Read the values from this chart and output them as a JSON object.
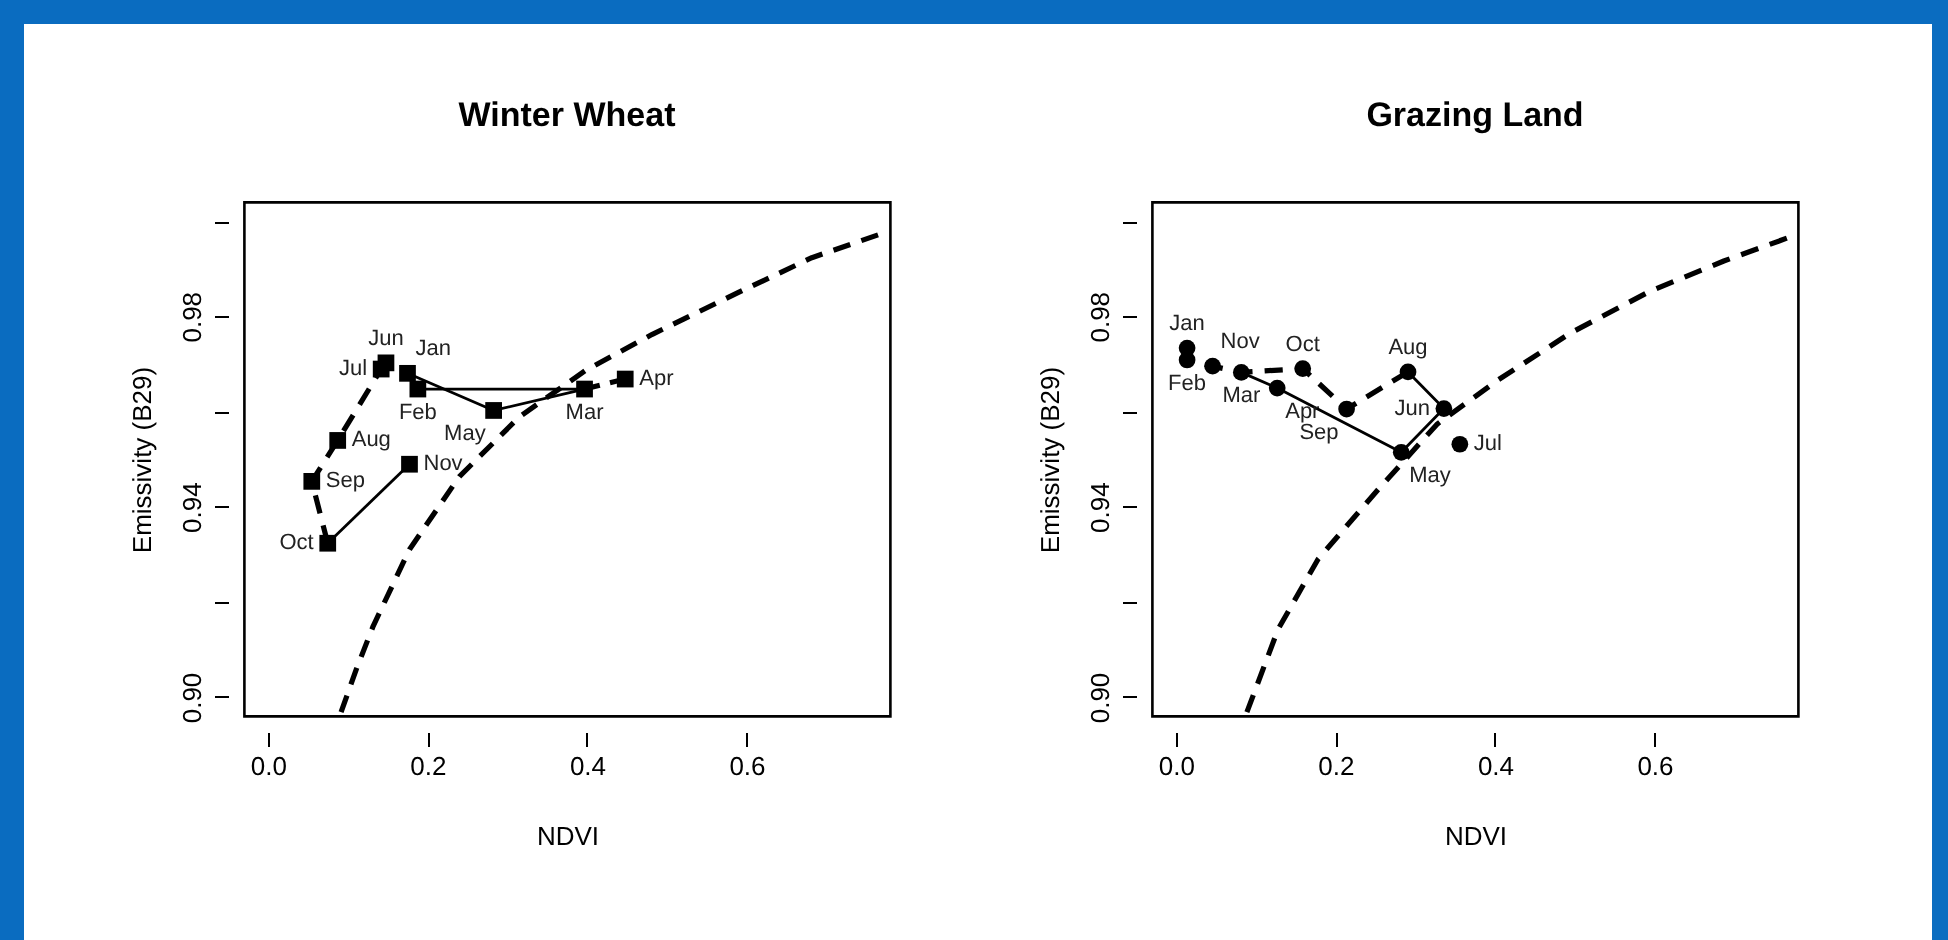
{
  "chart_data": [
    {
      "type": "scatter",
      "title": "Winter Wheat",
      "xlabel": "NDVI",
      "ylabel": "Emissivity (B29)",
      "xlim": [
        -0.03,
        0.78
      ],
      "ylim": [
        0.896,
        1.004
      ],
      "xticks": [
        {
          "value": 0,
          "label": "0.0"
        },
        0.2,
        0.4,
        0.6
      ],
      "yticks": [
        {
          "value": 0.9,
          "label": "0.90"
        },
        {
          "value": 0.92,
          "label": null
        },
        {
          "value": 0.94,
          "label": "0.94"
        },
        {
          "value": 0.96,
          "label": null
        },
        {
          "value": 0.98,
          "label": "0.98"
        },
        {
          "value": 1.0,
          "label": null
        }
      ],
      "grid": false,
      "series": [
        {
          "type": "line",
          "color": "#000000",
          "line_style": "solid",
          "x": [
            0.188,
            0.397
          ],
          "values": [
            0.9647,
            0.9647
          ]
        },
        {
          "type": "line",
          "color": "#000000",
          "line_style": "solid",
          "x": [
            0.175,
            0.283,
            0.397
          ],
          "values": [
            0.968,
            0.9602,
            0.9647
          ]
        },
        {
          "type": "line",
          "color": "#000000",
          "line_style": "dashed",
          "x": [
            0.397,
            0.448
          ],
          "values": [
            0.9647,
            0.9668
          ]
        },
        {
          "type": "line",
          "color": "#000000",
          "line_style": "dashed",
          "x": [
            0.148,
            0.142,
            0.0875,
            0.055,
            0.075
          ],
          "values": [
            0.9702,
            0.9689,
            0.9539,
            0.9453,
            0.9323
          ]
        },
        {
          "type": "line",
          "color": "#000000",
          "line_style": "solid",
          "x": [
            0.075,
            0.1775
          ],
          "values": [
            0.9323,
            0.9489
          ]
        },
        {
          "type": "line",
          "color": "#000000",
          "line_style": "dashed",
          "x": [
            0.0917,
            0.111,
            0.132,
            0.1775,
            0.24,
            0.315,
            0.398,
            0.482,
            0.59,
            0.682,
            0.765
          ],
          "values": [
            0.8968,
            0.9059,
            0.9149,
            0.931,
            0.9463,
            0.9588,
            0.9686,
            0.9762,
            0.985,
            0.9923,
            0.9971
          ]
        },
        {
          "type": "scatter",
          "color": "#000000",
          "marker": "square",
          "x": [
            0.175,
            0.188,
            0.397,
            0.448,
            0.283,
            0.148,
            0.142,
            0.0875,
            0.055,
            0.075,
            0.1775
          ],
          "values": [
            0.968,
            0.9647,
            0.9647,
            0.9668,
            0.9602,
            0.9702,
            0.9689,
            0.9539,
            0.9453,
            0.9323,
            0.9489
          ],
          "value_labels": [
            "Jan",
            "Feb",
            "Mar",
            "Apr",
            "May",
            "Jun",
            "Jul",
            "Aug",
            "Sep",
            "Oct",
            "Nov"
          ]
        }
      ]
    },
    {
      "type": "scatter",
      "title": "Grazing Land",
      "xlabel": "NDVI",
      "ylabel": "Emissivity (B29)",
      "xlim": [
        -0.03,
        0.78
      ],
      "ylim": [
        0.896,
        1.004
      ],
      "xticks": [
        {
          "value": 0,
          "label": "0.0"
        },
        0.2,
        0.4,
        0.6
      ],
      "yticks": [
        {
          "value": 0.9,
          "label": "0.90"
        },
        {
          "value": 0.92,
          "label": null
        },
        {
          "value": 0.94,
          "label": "0.94"
        },
        {
          "value": 0.96,
          "label": null
        },
        {
          "value": 0.98,
          "label": "0.98"
        },
        {
          "value": 1.0,
          "label": null
        }
      ],
      "grid": false,
      "series": [
        {
          "type": "line",
          "color": "#000000",
          "line_style": "dashed",
          "x": [
            0.014,
            0.014,
            0.046,
            0.082,
            0.159,
            0.214,
            0.291
          ],
          "values": [
            0.9733,
            0.9708,
            0.9695,
            0.9682,
            0.969,
            0.9605,
            0.9683
          ]
        },
        {
          "type": "line",
          "color": "#000000",
          "line_style": "solid",
          "x": [
            0.082,
            0.127,
            0.2825,
            0.336,
            0.291
          ],
          "values": [
            0.9682,
            0.9649,
            0.9514,
            0.9606,
            0.9683
          ]
        },
        {
          "type": "line",
          "color": "#000000",
          "line_style": "dashed",
          "x": [
            0.089,
            0.128,
            0.178,
            0.253,
            0.328,
            0.403,
            0.495,
            0.595,
            0.687,
            0.766
          ],
          "values": [
            0.8968,
            0.9142,
            0.9289,
            0.9435,
            0.9574,
            0.9665,
            0.9765,
            0.9853,
            0.9916,
            0.9964
          ]
        },
        {
          "type": "scatter",
          "color": "#000000",
          "marker": "circle",
          "x": [
            0.014,
            0.014,
            0.082,
            0.127,
            0.2825,
            0.336,
            0.356,
            0.291,
            0.214,
            0.159,
            0.046
          ],
          "values": [
            0.9733,
            0.9708,
            0.9682,
            0.9649,
            0.9514,
            0.9606,
            0.9531,
            0.9683,
            0.9605,
            0.969,
            0.9695
          ],
          "value_labels": [
            "Jan",
            "Feb",
            "Mar",
            "Apr",
            "May",
            "Jun",
            "Jul",
            "Aug",
            "Sep",
            "Oct",
            "Nov"
          ]
        }
      ]
    }
  ]
}
